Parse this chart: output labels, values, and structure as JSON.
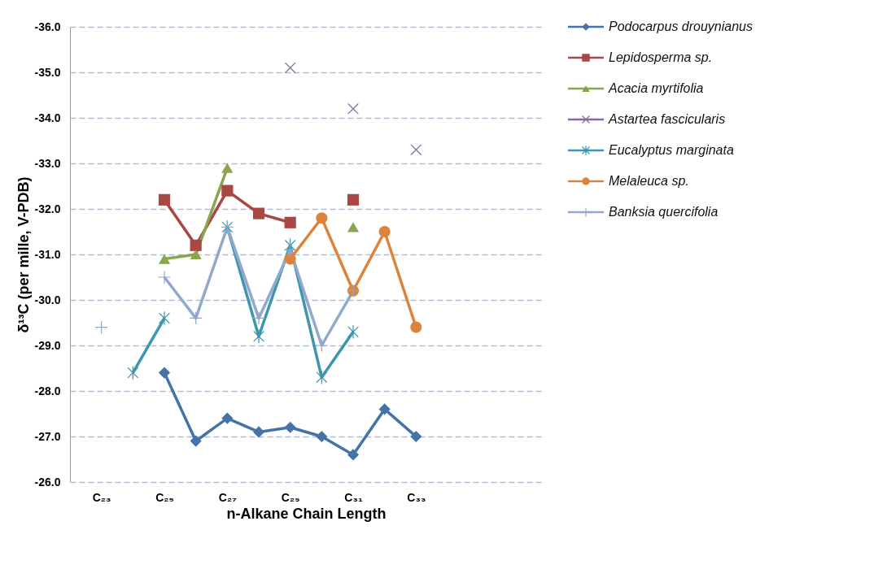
{
  "chart_data": {
    "type": "line",
    "xlabel": "n-Alkane Chain Length",
    "ylabel": "δ¹³C (per mille, V-PDB)",
    "categories": [
      null,
      "C₂₃",
      null,
      "C₂₅",
      null,
      "C₂₇",
      null,
      "C₂₉",
      null,
      "C₃₁",
      null,
      "C₃₃",
      null,
      null,
      null,
      null
    ],
    "ylim": [
      -26,
      -36
    ],
    "yticks": [
      {
        "value": -26,
        "label": "-26.0"
      },
      {
        "value": -27,
        "label": "-27.0"
      },
      {
        "value": -28,
        "label": "-28.0"
      },
      {
        "value": -29,
        "label": "-29.0"
      },
      {
        "value": -30,
        "label": "-30.0"
      },
      {
        "value": -31,
        "label": "-31.0"
      },
      {
        "value": -32,
        "label": "-32.0"
      },
      {
        "value": -33,
        "label": "-33.0"
      },
      {
        "value": -34,
        "label": "-34.0"
      },
      {
        "value": -35,
        "label": "-35.0"
      },
      {
        "value": -36,
        "label": "-36.0"
      }
    ],
    "grid": "y",
    "legend": "right",
    "series": [
      {
        "name": "Podocarpus drouynianus",
        "color": "#4572a7",
        "marker": "diamond",
        "values": [
          null,
          null,
          null,
          -28.4,
          -26.9,
          -27.4,
          -27.1,
          -27.2,
          -27.0,
          -26.6,
          -27.6,
          -27.0,
          null,
          null,
          null,
          null
        ]
      },
      {
        "name": "Lepidosperma sp.",
        "color": "#aa4643",
        "marker": "square",
        "values": [
          null,
          null,
          null,
          -32.2,
          -31.2,
          -32.4,
          -31.9,
          -31.7,
          null,
          -32.2,
          null,
          null,
          null,
          null,
          null,
          null
        ]
      },
      {
        "name": "Acacia myrtifolia",
        "color": "#89a54e",
        "marker": "triangle",
        "values": [
          null,
          null,
          null,
          -30.9,
          -31.0,
          -32.9,
          null,
          null,
          null,
          -31.6,
          null,
          null,
          null,
          null,
          null,
          null
        ]
      },
      {
        "name": "Astartea fascicularis",
        "color": "#80699b",
        "marker": "x",
        "values": [
          null,
          null,
          null,
          null,
          null,
          null,
          null,
          -35.1,
          null,
          -34.2,
          null,
          -33.3,
          null,
          null,
          null,
          null
        ]
      },
      {
        "name": "Eucalyptus marginata",
        "color": "#3d96ae",
        "marker": "cross",
        "values": [
          null,
          null,
          -28.4,
          -29.6,
          null,
          -31.6,
          -29.2,
          -31.2,
          -28.3,
          -29.3,
          null,
          null,
          null,
          null,
          null,
          null
        ]
      },
      {
        "name": "Melaleuca sp.",
        "color": "#db843d",
        "marker": "circle",
        "values": [
          null,
          null,
          null,
          null,
          null,
          null,
          null,
          -30.9,
          -31.8,
          -30.2,
          -31.5,
          -29.4,
          null,
          null,
          null,
          null
        ]
      },
      {
        "name": "Banksia quercifolia",
        "color": "#92a8cd",
        "marker": "plus",
        "values": [
          null,
          -29.4,
          null,
          -30.5,
          -29.6,
          -31.6,
          -29.6,
          -31.1,
          -29.0,
          -30.2,
          null,
          null,
          null,
          null,
          null,
          null
        ]
      }
    ]
  }
}
